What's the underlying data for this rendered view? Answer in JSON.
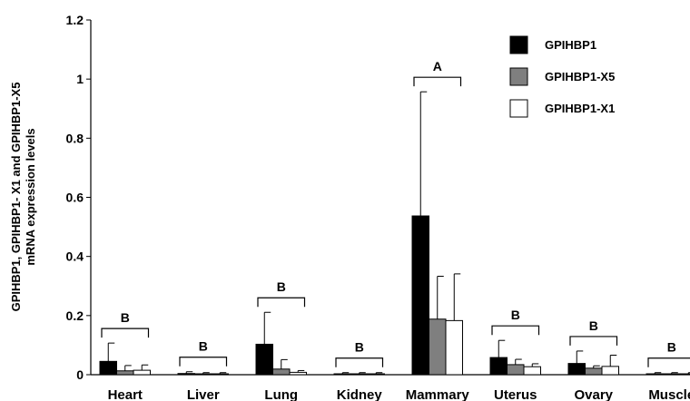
{
  "chart_data": {
    "type": "bar",
    "title": "",
    "xlabel": "",
    "ylabel_lines": [
      "GPIHBP1,  GPIHBP1- X1 and GPIHBP1-X5",
      "mRNA expression levels"
    ],
    "ylim": [
      0,
      1.2
    ],
    "yticks": [
      "0",
      "0.2",
      "0.4",
      "0.6",
      "0.8",
      "1",
      "1.2"
    ],
    "categories": [
      "Heart",
      "Liver",
      "Lung",
      "Kidney",
      "Mammary",
      "Uterus",
      "Ovary",
      "Muscle"
    ],
    "series": [
      {
        "name": "GPIHBP1",
        "color": "#000000",
        "values": [
          0.045,
          0.004,
          0.103,
          0.003,
          0.537,
          0.058,
          0.038,
          0.003
        ],
        "errors": [
          0.062,
          0.006,
          0.108,
          0.004,
          0.42,
          0.058,
          0.042,
          0.004
        ]
      },
      {
        "name": "GPIHBP1-X5",
        "color": "#7f7f7f",
        "values": [
          0.013,
          0.003,
          0.019,
          0.003,
          0.188,
          0.034,
          0.022,
          0.003
        ],
        "errors": [
          0.018,
          0.004,
          0.032,
          0.004,
          0.145,
          0.018,
          0.008,
          0.004
        ]
      },
      {
        "name": "GPIHBP1-X1",
        "color": "#ffffff",
        "values": [
          0.015,
          0.003,
          0.008,
          0.003,
          0.183,
          0.027,
          0.028,
          0.003
        ],
        "errors": [
          0.018,
          0.004,
          0.006,
          0.004,
          0.158,
          0.01,
          0.038,
          0.004
        ]
      }
    ],
    "group_letters": [
      "B",
      "B",
      "B",
      "B",
      "A",
      "B",
      "B",
      "B"
    ],
    "legend_position": "top-right",
    "grid": false
  }
}
